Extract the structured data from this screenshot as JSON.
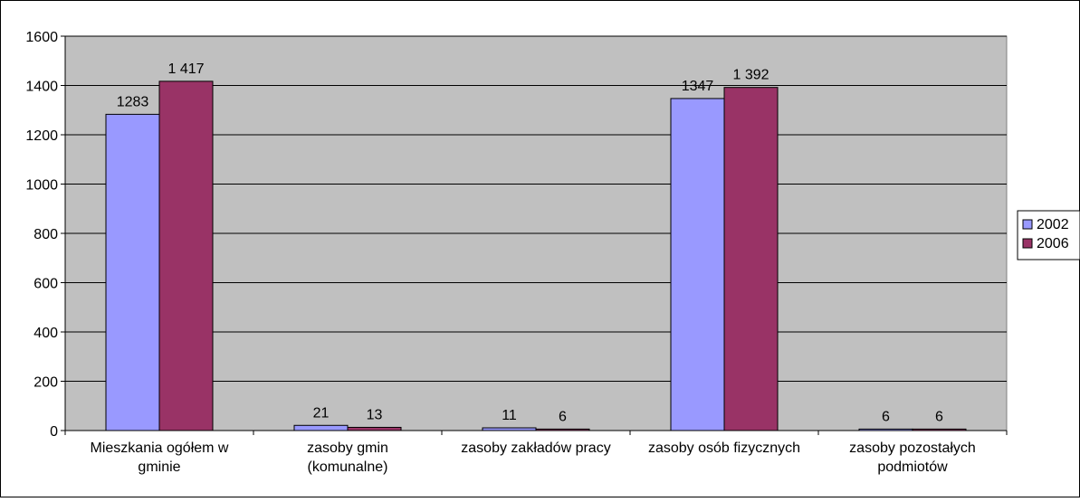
{
  "chart_data": {
    "type": "bar",
    "title": "",
    "xlabel": "",
    "ylabel": "",
    "categories": [
      [
        "Mieszkania ogółem w",
        "gminie"
      ],
      [
        "zasoby gmin",
        "(komunalne)"
      ],
      [
        "zasoby zakładów pracy"
      ],
      [
        "zasoby osób fizycznych"
      ],
      [
        "zasoby pozostałych",
        "podmiotów"
      ]
    ],
    "series": [
      {
        "name": "2002",
        "color": "#9999ff",
        "values": [
          1283,
          21,
          11,
          1347,
          6
        ],
        "labels": [
          "1283",
          "21",
          "11",
          "1347",
          "6"
        ]
      },
      {
        "name": "2006",
        "color": "#993366",
        "values": [
          1417,
          13,
          6,
          1392,
          6
        ],
        "labels": [
          "1 417",
          "13",
          "6",
          "1 392",
          "6"
        ]
      }
    ],
    "ylim": [
      0,
      1600
    ],
    "yticks": [
      0,
      200,
      400,
      600,
      800,
      1000,
      1200,
      1400,
      1600
    ],
    "plot_background": "#c0c0c0",
    "gridlines": true,
    "legend_position": "right"
  }
}
